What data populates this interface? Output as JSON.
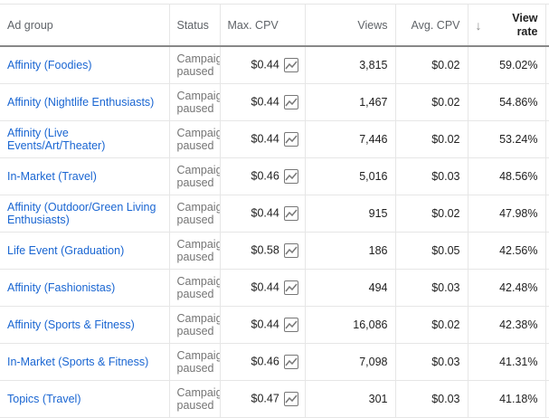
{
  "headers": {
    "ad_group": "Ad group",
    "status": "Status",
    "max_cpv": "Max. CPV",
    "views": "Views",
    "avg_cpv": "Avg. CPV",
    "view_rate": "View rate",
    "sort_icon": "arrow-down"
  },
  "rows": [
    {
      "ad_group": "Affinity (Foodies)",
      "status1": "Campaign",
      "status2": "paused",
      "max_cpv": "$0.44",
      "views": "3,815",
      "avg_cpv": "$0.02",
      "view_rate": "59.02%"
    },
    {
      "ad_group": "Affinity (Nightlife Enthusiasts)",
      "status1": "Campaign",
      "status2": "paused",
      "max_cpv": "$0.44",
      "views": "1,467",
      "avg_cpv": "$0.02",
      "view_rate": "54.86%"
    },
    {
      "ad_group": "Affinity (Live Events/Art/Theater)",
      "status1": "Campaign",
      "status2": "paused",
      "max_cpv": "$0.44",
      "views": "7,446",
      "avg_cpv": "$0.02",
      "view_rate": "53.24%"
    },
    {
      "ad_group": "In-Market (Travel)",
      "status1": "Campaign",
      "status2": "paused",
      "max_cpv": "$0.46",
      "views": "5,016",
      "avg_cpv": "$0.03",
      "view_rate": "48.56%"
    },
    {
      "ad_group": "Affinity (Outdoor/Green Living Enthusiasts)",
      "status1": "Campaign",
      "status2": "paused",
      "max_cpv": "$0.44",
      "views": "915",
      "avg_cpv": "$0.02",
      "view_rate": "47.98%"
    },
    {
      "ad_group": "Life Event (Graduation)",
      "status1": "Campaign",
      "status2": "paused",
      "max_cpv": "$0.58",
      "views": "186",
      "avg_cpv": "$0.05",
      "view_rate": "42.56%"
    },
    {
      "ad_group": "Affinity (Fashionistas)",
      "status1": "Campaign",
      "status2": "paused",
      "max_cpv": "$0.44",
      "views": "494",
      "avg_cpv": "$0.03",
      "view_rate": "42.48%"
    },
    {
      "ad_group": "Affinity (Sports & Fitness)",
      "status1": "Campaign",
      "status2": "paused",
      "max_cpv": "$0.44",
      "views": "16,086",
      "avg_cpv": "$0.02",
      "view_rate": "42.38%"
    },
    {
      "ad_group": "In-Market (Sports & Fitness)",
      "status1": "Campaign",
      "status2": "paused",
      "max_cpv": "$0.46",
      "views": "7,098",
      "avg_cpv": "$0.03",
      "view_rate": "41.31%"
    },
    {
      "ad_group": "Topics (Travel)",
      "status1": "Campaign",
      "status2": "paused",
      "max_cpv": "$0.47",
      "views": "301",
      "avg_cpv": "$0.03",
      "view_rate": "41.18%"
    }
  ]
}
